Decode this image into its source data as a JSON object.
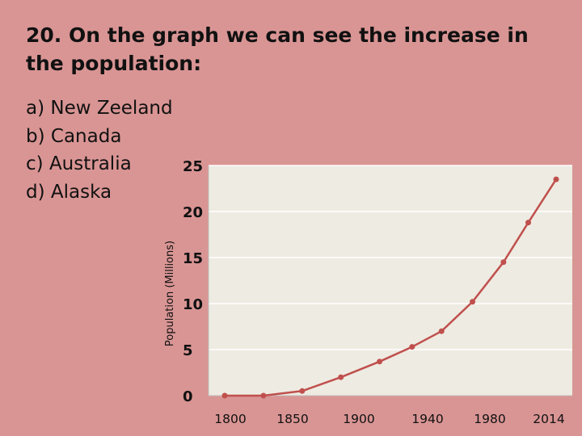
{
  "question": {
    "text": "20. On the graph we can see the increase in the population:"
  },
  "answers": [
    {
      "letter": "a)",
      "text": "New Zeeland"
    },
    {
      "letter": "b)",
      "text": "Canada"
    },
    {
      "letter": "c)",
      "text": "Australia"
    },
    {
      "letter": "d)",
      "text": "Alaska"
    }
  ],
  "colors": {
    "background": "#d99594",
    "plot_area": "#eeebe2",
    "line": "#c0504d",
    "grid": "#ffffff"
  },
  "chart_data": {
    "type": "line",
    "title": "",
    "xlabel": "",
    "ylabel": "Population (Millions)",
    "ylim": [
      0,
      25
    ],
    "yticks": [
      0,
      5,
      10,
      15,
      20,
      25
    ],
    "x_tick_labels": [
      "1800",
      "1850",
      "1900",
      "1940",
      "1980",
      "2014"
    ],
    "grid": "horizontal",
    "legend": "none",
    "series": [
      {
        "points": [
          {
            "x": 1800,
            "y": 0.0
          },
          {
            "x": 1825,
            "y": 0.0
          },
          {
            "x": 1850,
            "y": 0.5
          },
          {
            "x": 1875,
            "y": 2.0
          },
          {
            "x": 1900,
            "y": 3.7
          },
          {
            "x": 1921,
            "y": 5.3
          },
          {
            "x": 1940,
            "y": 7.0
          },
          {
            "x": 1960,
            "y": 10.2
          },
          {
            "x": 1980,
            "y": 14.5
          },
          {
            "x": 1996,
            "y": 18.8
          },
          {
            "x": 2014,
            "y": 23.5
          }
        ]
      }
    ]
  }
}
